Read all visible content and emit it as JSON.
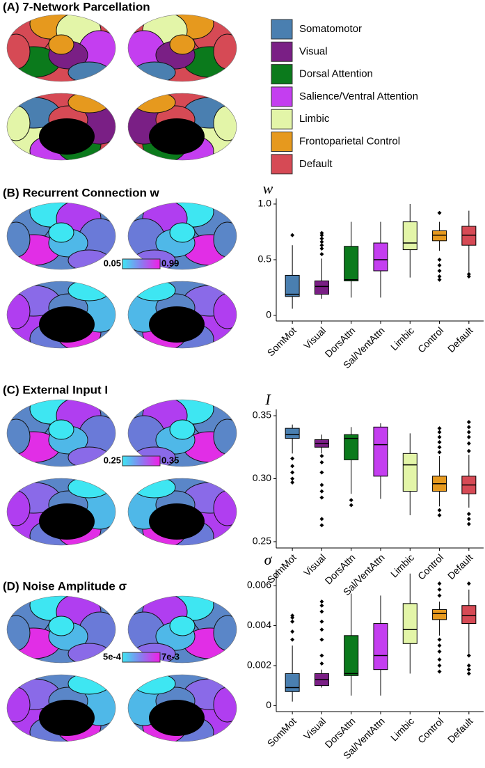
{
  "parcellation": {
    "title": "(A) 7-Network Parcellation",
    "legend": [
      {
        "name": "Somatomotor",
        "color": "#4a7fb0"
      },
      {
        "name": "Visual",
        "color": "#7a1f85"
      },
      {
        "name": "Dorsal Attention",
        "color": "#0b7a1c"
      },
      {
        "name": "Salience/Ventral Attention",
        "color": "#c43ef0"
      },
      {
        "name": "Limbic",
        "color": "#e3f5a8"
      },
      {
        "name": "Frontoparietal Control",
        "color": "#e6991e"
      },
      {
        "name": "Default",
        "color": "#d64a55"
      }
    ]
  },
  "chart_data": [
    {
      "type": "box",
      "title": "(B) Recurrent Connection w",
      "y_label": "w",
      "categories": [
        "SomMot",
        "Visual",
        "DorsAttn",
        "Sal/VentAttn",
        "Limbic",
        "Control",
        "Default"
      ],
      "colors": [
        "#4a7fb0",
        "#7a1f85",
        "#0b7a1c",
        "#c43ef0",
        "#e3f5a8",
        "#e6991e",
        "#d64a55"
      ],
      "boxes": [
        {
          "low": 0.06,
          "q1": 0.17,
          "median": 0.19,
          "q3": 0.36,
          "high": 0.63,
          "outliers": [
            0.72
          ]
        },
        {
          "low": 0.15,
          "q1": 0.19,
          "median": 0.26,
          "q3": 0.31,
          "high": 0.51,
          "outliers": [
            0.55,
            0.6,
            0.63,
            0.66,
            0.69,
            0.72,
            0.74
          ]
        },
        {
          "low": 0.16,
          "q1": 0.31,
          "median": 0.32,
          "q3": 0.62,
          "high": 0.84,
          "outliers": []
        },
        {
          "low": 0.16,
          "q1": 0.4,
          "median": 0.5,
          "q3": 0.65,
          "high": 0.84,
          "outliers": []
        },
        {
          "low": 0.34,
          "q1": 0.59,
          "median": 0.65,
          "q3": 0.84,
          "high": 1.0,
          "outliers": []
        },
        {
          "low": 0.58,
          "q1": 0.67,
          "median": 0.72,
          "q3": 0.76,
          "high": 0.84,
          "outliers": [
            0.92,
            0.5,
            0.45,
            0.4,
            0.35,
            0.32
          ]
        },
        {
          "low": 0.39,
          "q1": 0.63,
          "median": 0.72,
          "q3": 0.8,
          "high": 0.94,
          "outliers": [
            0.37,
            0.35
          ]
        }
      ],
      "ylim": [
        -0.05,
        1.05
      ],
      "yticks": [
        0,
        0.5,
        {
          "value": 1,
          "label": "1.0"
        }
      ],
      "colorbar": [
        0.05,
        0.99
      ]
    },
    {
      "type": "box",
      "title": "(C) External Input I",
      "y_label": "I",
      "categories": [
        "SomMot",
        "Visual",
        "DorsAttn",
        "Sal/VentAttn",
        "Limbic",
        "Control",
        "Default"
      ],
      "colors": [
        "#4a7fb0",
        "#7a1f85",
        "#0b7a1c",
        "#c43ef0",
        "#e3f5a8",
        "#e6991e",
        "#d64a55"
      ],
      "boxes": [
        {
          "low": 0.32,
          "q1": 0.332,
          "median": 0.335,
          "q3": 0.34,
          "high": 0.343,
          "outliers": [
            0.316,
            0.31,
            0.305,
            0.3,
            0.297
          ]
        },
        {
          "low": 0.32,
          "q1": 0.325,
          "median": 0.328,
          "q3": 0.331,
          "high": 0.335,
          "outliers": [
            0.318,
            0.313,
            0.305,
            0.295,
            0.29,
            0.285,
            0.268,
            0.263
          ]
        },
        {
          "low": 0.288,
          "q1": 0.315,
          "median": 0.332,
          "q3": 0.335,
          "high": 0.341,
          "outliers": [
            0.283,
            0.279
          ]
        },
        {
          "low": 0.284,
          "q1": 0.302,
          "median": 0.327,
          "q3": 0.341,
          "high": 0.344,
          "outliers": []
        },
        {
          "low": 0.271,
          "q1": 0.29,
          "median": 0.311,
          "q3": 0.32,
          "high": 0.336,
          "outliers": []
        },
        {
          "low": 0.278,
          "q1": 0.29,
          "median": 0.296,
          "q3": 0.302,
          "high": 0.318,
          "outliers": [
            0.321,
            0.325,
            0.329,
            0.333,
            0.337,
            0.34,
            0.275,
            0.271
          ]
        },
        {
          "low": 0.277,
          "q1": 0.288,
          "median": 0.295,
          "q3": 0.302,
          "high": 0.319,
          "outliers": [
            0.322,
            0.328,
            0.333,
            0.337,
            0.341,
            0.345,
            0.272,
            0.268,
            0.264
          ]
        }
      ],
      "ylim": [
        0.245,
        0.355
      ],
      "yticks": [
        0.25,
        {
          "value": 0.3,
          "label": "0.30"
        },
        0.35
      ],
      "colorbar": [
        0.25,
        0.35
      ]
    },
    {
      "type": "box",
      "title": "(D) Noise Amplitude σ",
      "y_label": "σ",
      "categories": [
        "SomMot",
        "Visual",
        "DorsAttn",
        "Sal/VentAttn",
        "Limbic",
        "Control",
        "Default"
      ],
      "colors": [
        "#4a7fb0",
        "#7a1f85",
        "#0b7a1c",
        "#c43ef0",
        "#e3f5a8",
        "#e6991e",
        "#d64a55"
      ],
      "boxes": [
        {
          "low": 0.0002,
          "q1": 0.0007,
          "median": 0.0009,
          "q3": 0.0016,
          "high": 0.003,
          "outliers": [
            0.0033,
            0.0037,
            0.0042,
            0.0044,
            0.0045
          ]
        },
        {
          "low": 0.0009,
          "q1": 0.001,
          "median": 0.0013,
          "q3": 0.0016,
          "high": 0.0018,
          "outliers": [
            0.0021,
            0.0025,
            0.0033,
            0.0038,
            0.0042,
            0.0047,
            0.005,
            0.0052
          ]
        },
        {
          "low": 0.0005,
          "q1": 0.0015,
          "median": 0.0016,
          "q3": 0.0035,
          "high": 0.0056,
          "outliers": []
        },
        {
          "low": 0.0005,
          "q1": 0.0018,
          "median": 0.0025,
          "q3": 0.0041,
          "high": 0.0055,
          "outliers": []
        },
        {
          "low": 0.0016,
          "q1": 0.0031,
          "median": 0.0038,
          "q3": 0.0051,
          "high": 0.0066,
          "outliers": []
        },
        {
          "low": 0.0035,
          "q1": 0.0043,
          "median": 0.0046,
          "q3": 0.0048,
          "high": 0.0052,
          "outliers": [
            0.0055,
            0.0058,
            0.0061,
            0.0033,
            0.003,
            0.0027,
            0.0023,
            0.002,
            0.0017
          ]
        },
        {
          "low": 0.0026,
          "q1": 0.0041,
          "median": 0.0045,
          "q3": 0.005,
          "high": 0.0058,
          "outliers": [
            0.0061,
            0.0025,
            0.002,
            0.0018,
            0.0016
          ]
        }
      ],
      "ylim": [
        -0.0003,
        0.0068
      ],
      "yticks": [
        0,
        0.002,
        0.004,
        0.006
      ],
      "colorbar": [
        {
          "value": 0.0005,
          "label": "5e-4"
        },
        {
          "value": 0.007,
          "label": "7e-3"
        }
      ]
    }
  ]
}
